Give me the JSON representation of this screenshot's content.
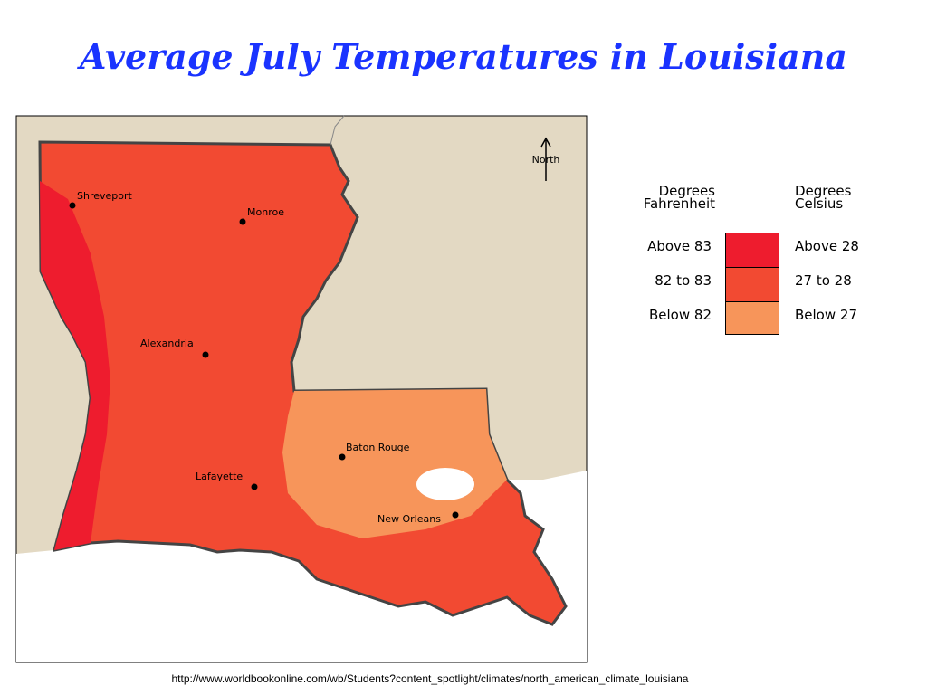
{
  "title": "Average July Temperatures in Louisiana",
  "map": {
    "north_label": "North",
    "cities": [
      "Shreveport",
      "Monroe",
      "Alexandria",
      "Baton Rouge",
      "Lafayette",
      "New Orleans"
    ]
  },
  "legend": {
    "fahrenheit_header": "Degrees Fahrenheit",
    "celsius_header": "Degrees Celsius",
    "rows": [
      {
        "fahrenheit": "Above 83",
        "celsius": "Above 28",
        "color": "#ee1c2e"
      },
      {
        "fahrenheit": "82 to 83",
        "celsius": "27 to 28",
        "color": "#f24a32"
      },
      {
        "fahrenheit": "Below 82",
        "celsius": "Below 27",
        "color": "#f7955a"
      }
    ]
  },
  "source_url": "http://www.worldbookonline.com/wb/Students?content_spotlight/climates/north_american_climate_louisiana"
}
